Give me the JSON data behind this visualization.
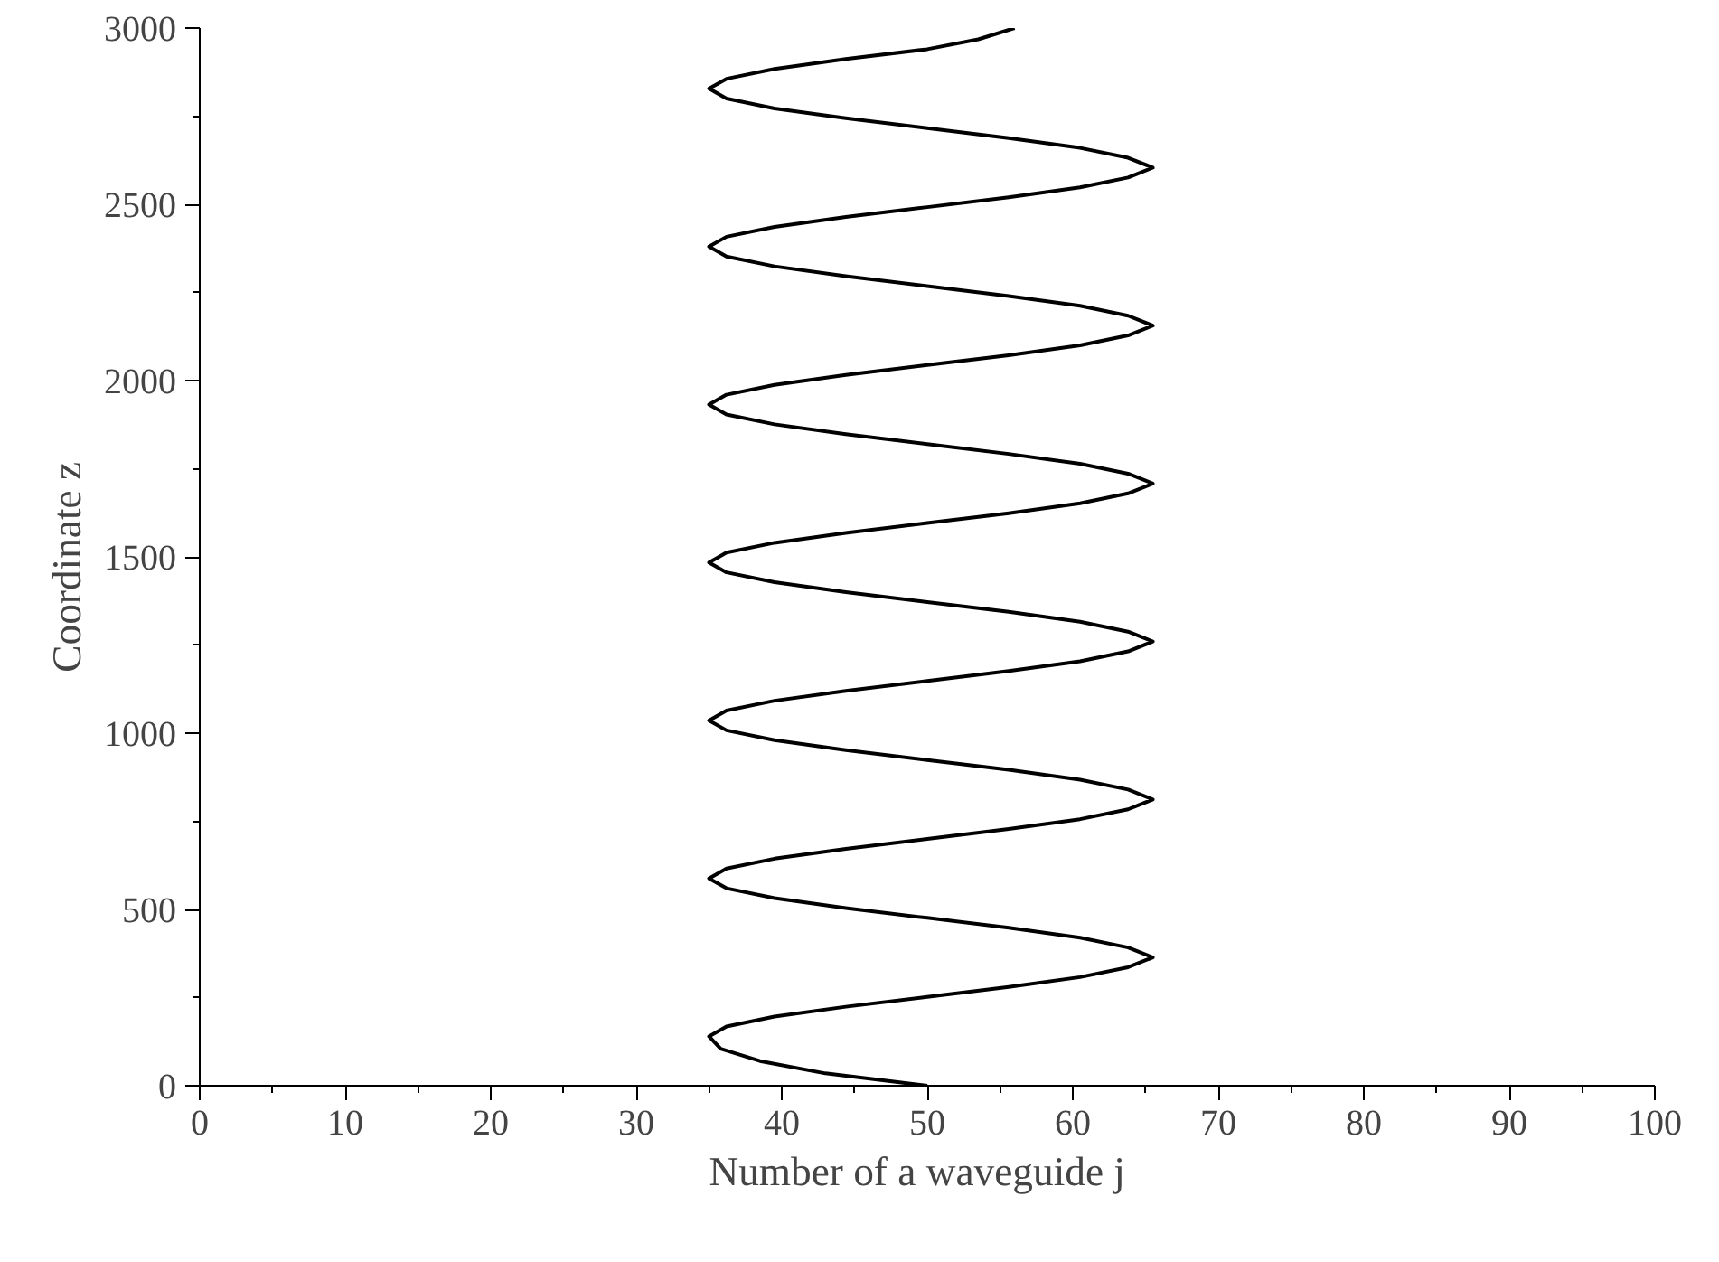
{
  "chart_data": {
    "type": "line",
    "xlabel": "Number of a waveguide   j",
    "ylabel": "Coordinate   z",
    "xlim": [
      0,
      100
    ],
    "ylim": [
      0,
      3000
    ],
    "xticks": [
      0,
      10,
      20,
      30,
      40,
      50,
      60,
      70,
      80,
      90,
      100
    ],
    "yticks": [
      0,
      500,
      1000,
      1500,
      2000,
      2500,
      3000
    ],
    "grid": false,
    "marker": "none",
    "line_style": "solid",
    "series": [
      {
        "color": "#000000",
        "x": [
          50,
          43,
          38.5,
          35.8,
          35,
          36.2,
          39.5,
          44.4,
          50,
          55.6,
          60.5,
          63.8,
          65.5,
          63.8,
          60.5,
          55.6,
          50,
          44.4,
          39.5,
          36.2,
          35,
          36.2,
          39.5,
          44.4,
          50,
          55.6,
          60.5,
          63.8,
          65.5,
          63.8,
          60.5,
          55.6,
          50,
          44.4,
          39.5,
          36.2,
          35,
          36.2,
          39.5,
          44.4,
          50,
          55.6,
          60.5,
          63.8,
          65.5,
          63.8,
          60.5,
          55.6,
          50,
          44.4,
          39.5,
          36.2,
          35,
          36.2,
          39.5,
          44.4,
          50,
          55.6,
          60.5,
          63.8,
          65.5,
          63.8,
          60.5,
          55.6,
          50,
          44.4,
          39.5,
          36.2,
          35,
          36.2,
          39.5,
          44.4,
          50,
          55.6,
          60.5,
          63.8,
          65.5,
          63.8,
          60.5,
          55.6,
          50,
          44.4,
          39.5,
          36.2,
          35,
          36.2,
          39.5,
          44.4,
          50,
          55.6,
          60.5,
          63.8,
          65.5,
          63.8,
          60.5,
          55.6,
          50,
          44.4,
          39.5,
          36.2,
          35,
          36.2,
          39.5,
          44.4,
          50,
          53.5,
          56
        ],
        "values": [
          0,
          35,
          70,
          105,
          140,
          168,
          196,
          224,
          252,
          280,
          308,
          336,
          364,
          392,
          420,
          448,
          476,
          504,
          532,
          560,
          588,
          616,
          644,
          672,
          700,
          728,
          756,
          784,
          812,
          840,
          868,
          896,
          924,
          952,
          980,
          1008,
          1036,
          1064,
          1092,
          1120,
          1148,
          1176,
          1204,
          1232,
          1260,
          1288,
          1316,
          1344,
          1372,
          1400,
          1428,
          1456,
          1484,
          1512,
          1540,
          1568,
          1596,
          1624,
          1652,
          1680,
          1708,
          1736,
          1764,
          1792,
          1820,
          1848,
          1876,
          1904,
          1932,
          1960,
          1988,
          2016,
          2044,
          2072,
          2100,
          2128,
          2156,
          2184,
          2212,
          2240,
          2268,
          2296,
          2324,
          2352,
          2380,
          2408,
          2436,
          2464,
          2492,
          2520,
          2548,
          2576,
          2604,
          2632,
          2660,
          2688,
          2716,
          2744,
          2772,
          2800,
          2828,
          2856,
          2884,
          2912,
          2940,
          2968,
          3000
        ]
      }
    ]
  }
}
